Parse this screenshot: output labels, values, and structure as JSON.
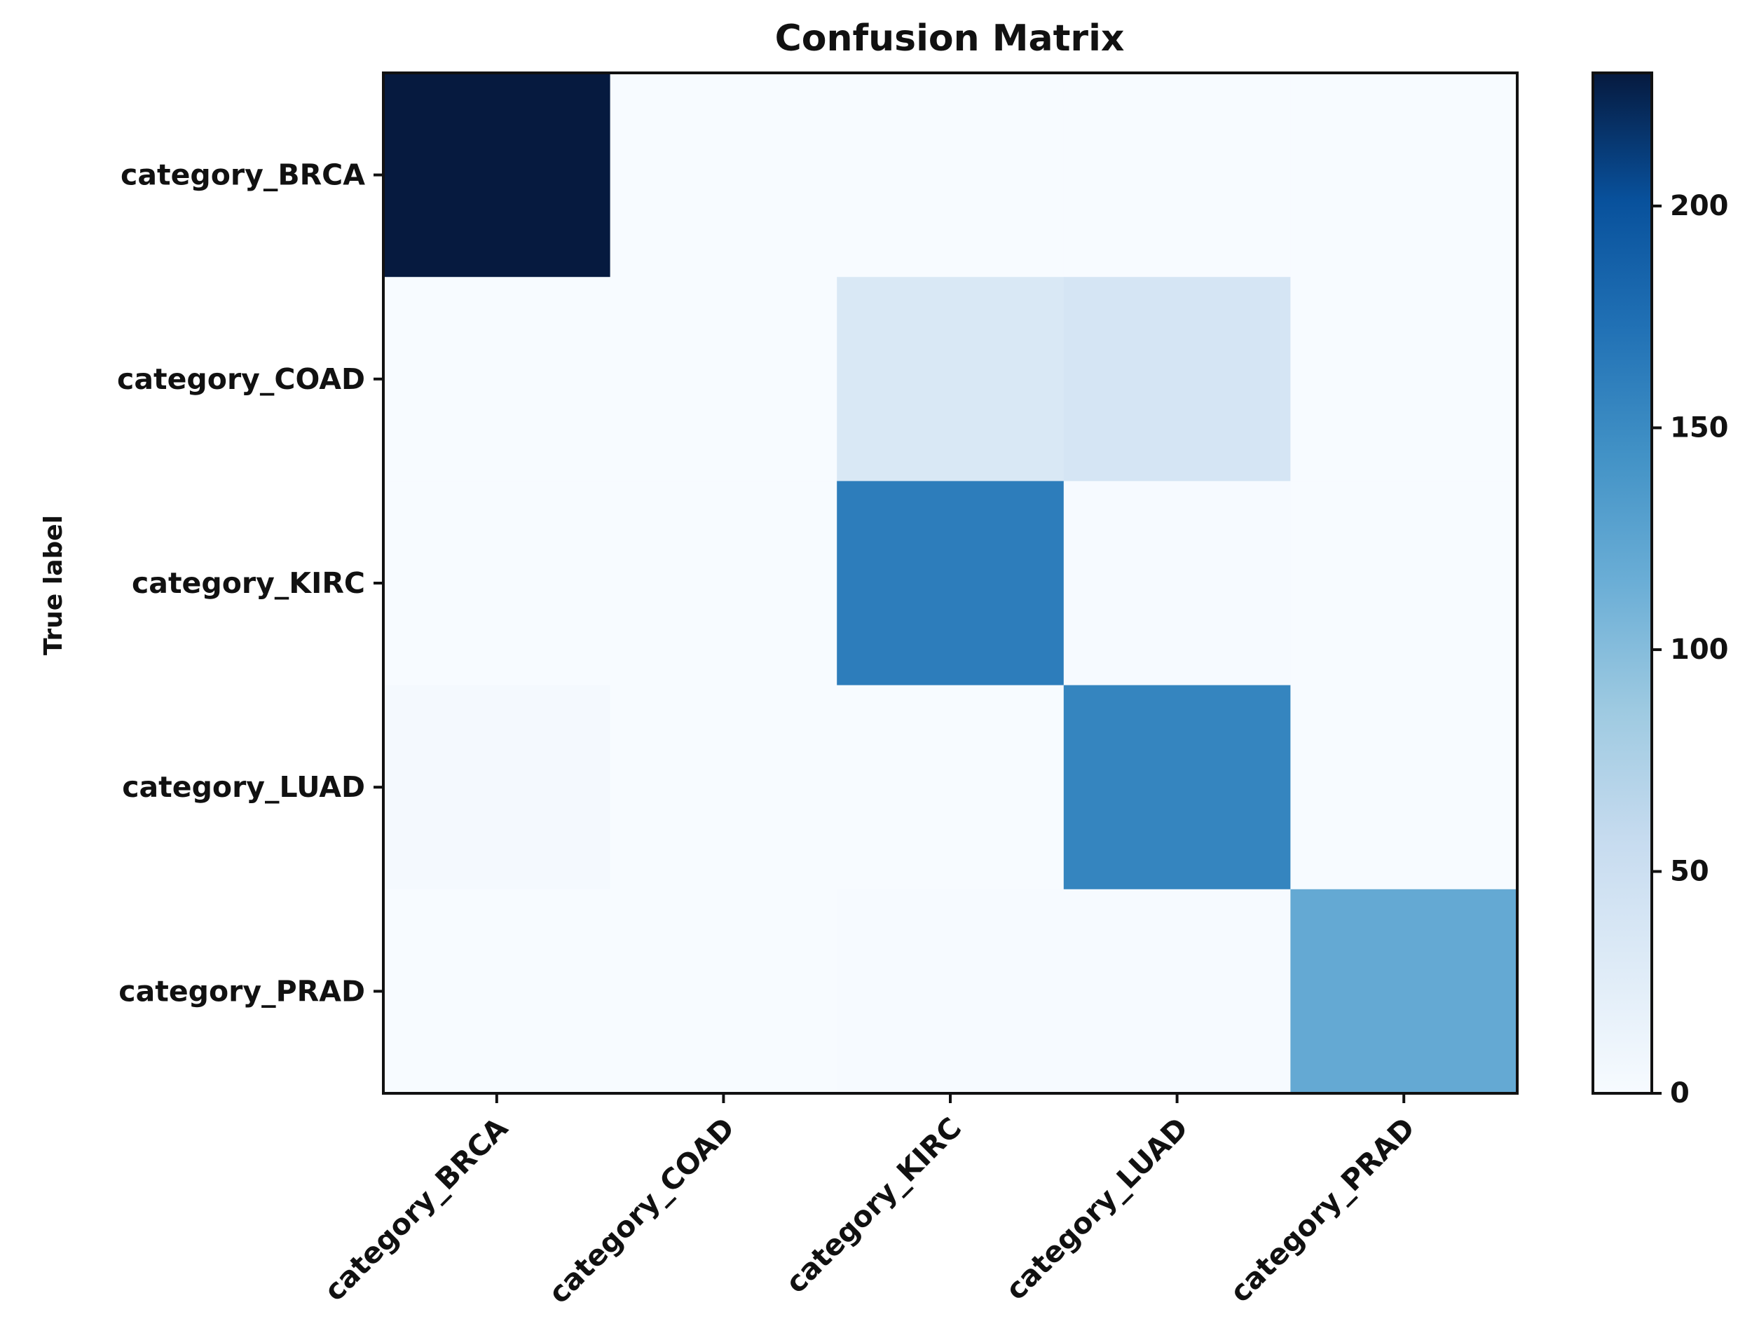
{
  "chart_data": {
    "type": "heatmap",
    "title": "Confusion Matrix",
    "ylabel": "True label",
    "xlabel": "",
    "row_labels": [
      "category_BRCA",
      "category_COAD",
      "category_KIRC",
      "category_LUAD",
      "category_PRAD"
    ],
    "col_labels": [
      "category_BRCA",
      "category_COAD",
      "category_KIRC",
      "category_LUAD",
      "category_PRAD"
    ],
    "values": [
      [
        230,
        0,
        0,
        0,
        0
      ],
      [
        0,
        0,
        35,
        40,
        0
      ],
      [
        0,
        0,
        162,
        1,
        0
      ],
      [
        3,
        0,
        0,
        155,
        0
      ],
      [
        0,
        0,
        1,
        1,
        120
      ]
    ],
    "colorbar": {
      "ticks": [
        0,
        50,
        100,
        150,
        200
      ],
      "range": [
        0,
        230
      ],
      "colormap": "Blues"
    }
  }
}
